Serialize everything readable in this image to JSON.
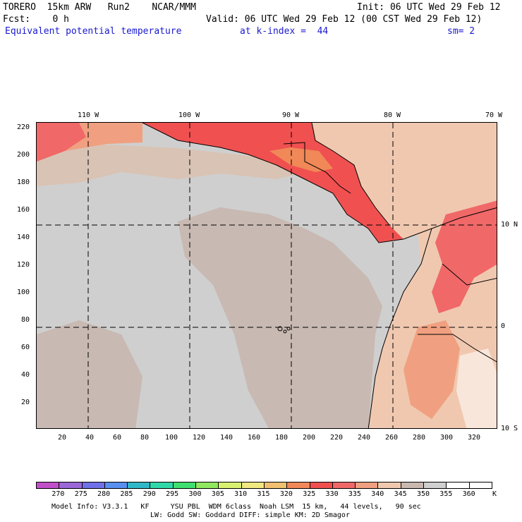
{
  "header": {
    "line1_left": "TORERO  15km ARW   Run2    NCAR/MMM",
    "line1_right": "Init: 06 UTC Wed 29 Feb 12",
    "line2_left": "Fcst:    0 h",
    "line2_right": "Valid: 06 UTC Wed 29 Feb 12 (00 CST Wed 29 Feb 12)",
    "line3_field": "Equivalent potential temperature",
    "line3_level": "at k-index =  44",
    "line3_smooth": "sm= 2"
  },
  "map": {
    "top_lon_labels": [
      "110 W",
      "100 W",
      "90 W",
      "80 W",
      "70 W"
    ],
    "right_lat_labels": [
      "10 N",
      "0",
      "10 S"
    ],
    "left_grid_labels": [
      "220",
      "200",
      "180",
      "160",
      "140",
      "120",
      "100",
      "80",
      "60",
      "40",
      "20"
    ],
    "bottom_grid_labels": [
      "20",
      "40",
      "60",
      "80",
      "100",
      "120",
      "140",
      "160",
      "180",
      "200",
      "220",
      "240",
      "260",
      "280",
      "300",
      "320"
    ]
  },
  "colorbar": {
    "labels": [
      "270",
      "275",
      "280",
      "285",
      "290",
      "295",
      "300",
      "305",
      "310",
      "315",
      "320",
      "325",
      "330",
      "335",
      "340",
      "345",
      "350",
      "355",
      "360"
    ],
    "unit": "K",
    "colors": [
      "#c050c8",
      "#9a68d8",
      "#7070e8",
      "#5890f0",
      "#30b8c8",
      "#30d8a8",
      "#40e070",
      "#90e860",
      "#d8f070",
      "#f0e880",
      "#f0c070",
      "#f08858",
      "#f05050",
      "#f06868",
      "#f0a080",
      "#f0c8b0",
      "#c8b8b0",
      "#d0d0d0",
      "#ffffff",
      "#ffffff"
    ]
  },
  "footer": {
    "line1": "Model Info: V3.3.1   KF     YSU PBL  WDM 6class  Noah LSM  15 km,   44 levels,   90 sec",
    "line2": "LW: Godd SW: Goddard DIFF: simple KM: 2D Smagor"
  }
}
